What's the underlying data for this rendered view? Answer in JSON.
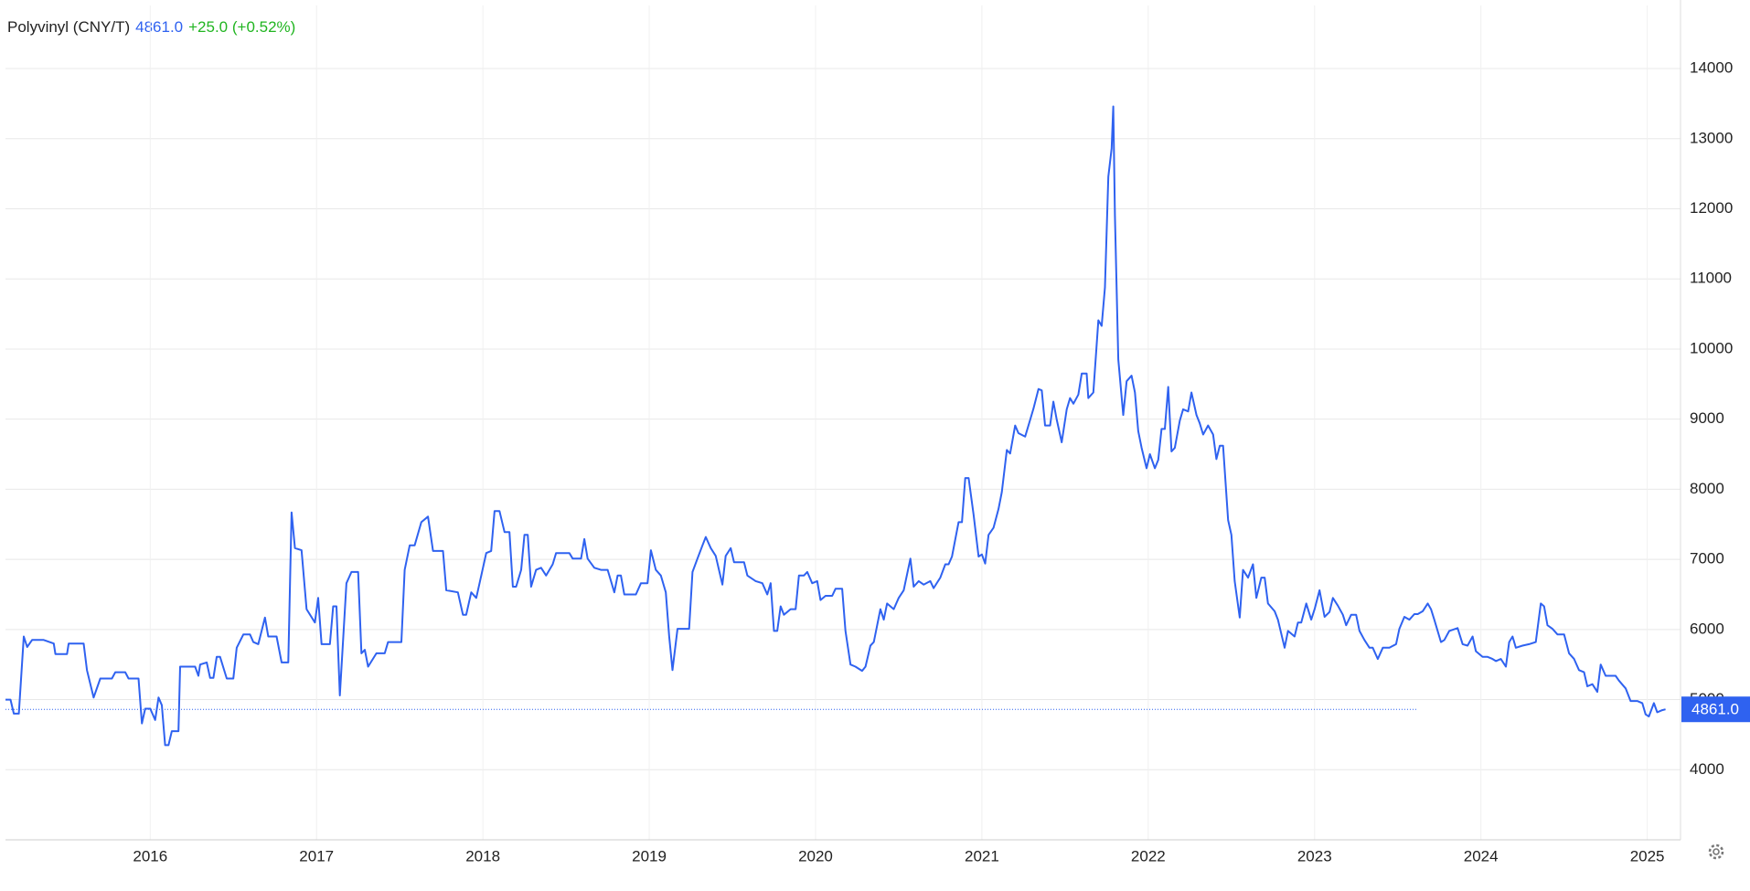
{
  "chart_data": {
    "type": "line",
    "title": "Polyvinyl (CNY/T)",
    "change": "+25.0 (+0.52%)",
    "current": {
      "value": 4861,
      "label": "4861.0"
    },
    "color": "#2f62f0",
    "change_color": "#21b521",
    "grid": true,
    "xlim": [
      2015.13,
      2025.2
    ],
    "xticks": [
      2016,
      2017,
      2018,
      2019,
      2020,
      2021,
      2022,
      2023,
      2024,
      2025
    ],
    "ylim": [
      3000,
      14900
    ],
    "yticks": [
      4000,
      5000,
      6000,
      7000,
      8000,
      9000,
      10000,
      11000,
      12000,
      13000,
      14000
    ],
    "x": [
      2015.13,
      2015.16,
      2015.18,
      2015.21,
      2015.24,
      2015.26,
      2015.29,
      2015.36,
      2015.42,
      2015.43,
      2015.5,
      2015.51,
      2015.6,
      2015.62,
      2015.66,
      2015.7,
      2015.77,
      2015.79,
      2015.85,
      2015.87,
      2015.93,
      2015.95,
      2015.97,
      2016.0,
      2016.03,
      2016.05,
      2016.07,
      2016.09,
      2016.11,
      2016.13,
      2016.17,
      2016.18,
      2016.27,
      2016.29,
      2016.3,
      2016.34,
      2016.36,
      2016.38,
      2016.4,
      2016.42,
      2016.46,
      2016.5,
      2016.52,
      2016.56,
      2016.6,
      2016.62,
      2016.65,
      2016.69,
      2016.71,
      2016.76,
      2016.79,
      2016.83,
      2016.85,
      2016.87,
      2016.91,
      2016.94,
      2016.99,
      2017.01,
      2017.03,
      2017.08,
      2017.1,
      2017.12,
      2017.14,
      2017.18,
      2017.21,
      2017.25,
      2017.27,
      2017.29,
      2017.31,
      2017.36,
      2017.41,
      2017.43,
      2017.51,
      2017.53,
      2017.56,
      2017.59,
      2017.63,
      2017.67,
      2017.7,
      2017.76,
      2017.78,
      2017.85,
      2017.88,
      2017.9,
      2017.93,
      2017.96,
      2017.98,
      2018.02,
      2018.05,
      2018.07,
      2018.1,
      2018.13,
      2018.16,
      2018.18,
      2018.2,
      2018.23,
      2018.25,
      2018.27,
      2018.29,
      2018.32,
      2018.35,
      2018.38,
      2018.42,
      2018.44,
      2018.52,
      2018.54,
      2018.59,
      2018.61,
      2018.63,
      2018.67,
      2018.71,
      2018.75,
      2018.79,
      2018.81,
      2018.83,
      2018.85,
      2018.92,
      2018.95,
      2018.99,
      2019.01,
      2019.04,
      2019.07,
      2019.1,
      2019.12,
      2019.14,
      2019.17,
      2019.24,
      2019.26,
      2019.29,
      2019.32,
      2019.34,
      2019.37,
      2019.4,
      2019.44,
      2019.46,
      2019.49,
      2019.51,
      2019.57,
      2019.59,
      2019.64,
      2019.68,
      2019.71,
      2019.73,
      2019.75,
      2019.77,
      2019.79,
      2019.81,
      2019.85,
      2019.88,
      2019.9,
      2019.93,
      2019.95,
      2019.98,
      2020.01,
      2020.03,
      2020.06,
      2020.1,
      2020.12,
      2020.16,
      2020.18,
      2020.21,
      2020.24,
      2020.28,
      2020.3,
      2020.33,
      2020.35,
      2020.39,
      2020.41,
      2020.43,
      2020.47,
      2020.5,
      2020.53,
      2020.57,
      2020.59,
      2020.62,
      2020.65,
      2020.69,
      2020.71,
      2020.75,
      2020.78,
      2020.8,
      2020.82,
      2020.86,
      2020.88,
      2020.9,
      2020.92,
      2020.95,
      2020.98,
      2021.0,
      2021.02,
      2021.04,
      2021.07,
      2021.1,
      2021.12,
      2021.15,
      2021.17,
      2021.2,
      2021.22,
      2021.26,
      2021.29,
      2021.31,
      2021.34,
      2021.36,
      2021.38,
      2021.41,
      2021.43,
      2021.45,
      2021.48,
      2021.51,
      2021.53,
      2021.55,
      2021.58,
      2021.6,
      2021.63,
      2021.64,
      2021.67,
      2021.7,
      2021.72,
      2021.74,
      2021.76,
      2021.78,
      2021.79,
      2021.8,
      2021.82,
      2021.85,
      2021.87,
      2021.9,
      2021.92,
      2021.94,
      2021.96,
      2021.99,
      2022.01,
      2022.04,
      2022.06,
      2022.08,
      2022.1,
      2022.12,
      2022.14,
      2022.16,
      2022.19,
      2022.21,
      2022.24,
      2022.26,
      2022.29,
      2022.31,
      2022.33,
      2022.36,
      2022.39,
      2022.41,
      2022.43,
      2022.45,
      2022.48,
      2022.5,
      2022.52,
      2022.55,
      2022.57,
      2022.6,
      2022.63,
      2022.65,
      2022.68,
      2022.7,
      2022.72,
      2022.76,
      2022.78,
      2022.82,
      2022.84,
      2022.88,
      2022.9,
      2022.92,
      2022.95,
      2022.98,
      2023.0,
      2023.03,
      2023.06,
      2023.09,
      2023.11,
      2023.14,
      2023.17,
      2023.19,
      2023.22,
      2023.25,
      2023.27,
      2023.3,
      2023.33,
      2023.35,
      2023.38,
      2023.41,
      2023.45,
      2023.49,
      2023.51,
      2023.54,
      2023.57,
      2023.6,
      2023.62,
      2023.65,
      2023.68,
      2023.7,
      2023.72,
      2023.76,
      2023.78,
      2023.81,
      2023.86,
      2023.89,
      2023.92,
      2023.95,
      2023.97,
      2024.01,
      2024.04,
      2024.07,
      2024.09,
      2024.12,
      2024.15,
      2024.17,
      2024.19,
      2024.21,
      2024.25,
      2024.29,
      2024.33,
      2024.36,
      2024.38,
      2024.4,
      2024.43,
      2024.46,
      2024.5,
      2024.53,
      2024.56,
      2024.59,
      2024.62,
      2024.64,
      2024.67,
      2024.7,
      2024.72,
      2024.75,
      2024.78,
      2024.81,
      2024.83,
      2024.87,
      2024.9,
      2024.94,
      2024.97,
      2024.99,
      2025.01,
      2025.04,
      2025.06,
      2025.09,
      2025.11
    ],
    "values": [
      5000,
      5000,
      4800,
      4800,
      5900,
      5750,
      5850,
      5850,
      5800,
      5650,
      5650,
      5800,
      5800,
      5420,
      5030,
      5300,
      5300,
      5390,
      5390,
      5300,
      5300,
      4660,
      4870,
      4870,
      4710,
      5030,
      4920,
      4350,
      4350,
      4550,
      4550,
      5470,
      5470,
      5340,
      5500,
      5530,
      5310,
      5310,
      5610,
      5610,
      5300,
      5300,
      5740,
      5930,
      5930,
      5820,
      5790,
      6170,
      5900,
      5900,
      5530,
      5530,
      7670,
      7160,
      7130,
      6290,
      6100,
      6450,
      5790,
      5790,
      6330,
      6330,
      5060,
      6660,
      6820,
      6820,
      5660,
      5710,
      5470,
      5660,
      5660,
      5820,
      5820,
      6850,
      7200,
      7200,
      7530,
      7610,
      7120,
      7120,
      6560,
      6530,
      6210,
      6210,
      6530,
      6450,
      6660,
      7090,
      7120,
      7690,
      7690,
      7390,
      7390,
      6610,
      6610,
      6850,
      7350,
      7350,
      6610,
      6850,
      6880,
      6770,
      6930,
      7090,
      7090,
      7010,
      7010,
      7290,
      7010,
      6880,
      6850,
      6850,
      6530,
      6770,
      6770,
      6500,
      6500,
      6660,
      6660,
      7130,
      6850,
      6770,
      6530,
      5900,
      5420,
      6010,
      6010,
      6820,
      7010,
      7200,
      7320,
      7160,
      7050,
      6640,
      7050,
      7160,
      6960,
      6960,
      6770,
      6690,
      6660,
      6500,
      6660,
      5980,
      5980,
      6330,
      6210,
      6290,
      6290,
      6770,
      6770,
      6820,
      6660,
      6690,
      6420,
      6480,
      6480,
      6580,
      6580,
      5980,
      5500,
      5470,
      5410,
      5470,
      5770,
      5820,
      6290,
      6140,
      6370,
      6290,
      6450,
      6560,
      7010,
      6610,
      6690,
      6640,
      6690,
      6590,
      6740,
      6930,
      6930,
      7040,
      7530,
      7530,
      8160,
      8160,
      7640,
      7040,
      7070,
      6940,
      7350,
      7450,
      7720,
      7960,
      8560,
      8510,
      8910,
      8800,
      8750,
      8990,
      9150,
      9430,
      9410,
      8910,
      8910,
      9250,
      8990,
      8670,
      9140,
      9300,
      9220,
      9350,
      9650,
      9650,
      9300,
      9380,
      10410,
      10330,
      10880,
      12460,
      12860,
      13460,
      11910,
      9850,
      9060,
      9540,
      9620,
      9380,
      8830,
      8590,
      8300,
      8500,
      8300,
      8420,
      8860,
      8860,
      9460,
      8540,
      8590,
      8980,
      9140,
      9110,
      9380,
      9060,
      8940,
      8780,
      8910,
      8780,
      8430,
      8620,
      8620,
      7560,
      7350,
      6690,
      6170,
      6850,
      6740,
      6930,
      6450,
      6740,
      6740,
      6370,
      6260,
      6140,
      5740,
      5980,
      5900,
      6100,
      6100,
      6370,
      6140,
      6290,
      6560,
      6180,
      6250,
      6450,
      6340,
      6210,
      6060,
      6210,
      6210,
      5980,
      5850,
      5740,
      5740,
      5580,
      5740,
      5740,
      5790,
      6010,
      6180,
      6140,
      6220,
      6220,
      6260,
      6370,
      6290,
      6140,
      5820,
      5850,
      5980,
      6020,
      5790,
      5770,
      5900,
      5690,
      5610,
      5610,
      5580,
      5550,
      5580,
      5470,
      5820,
      5900,
      5740,
      5770,
      5790,
      5820,
      6370,
      6330,
      6060,
      6010,
      5930,
      5930,
      5660,
      5580,
      5420,
      5390,
      5190,
      5220,
      5110,
      5500,
      5340,
      5340,
      5340,
      5270,
      5160,
      4980,
      4980,
      4950,
      4790,
      4760,
      4950,
      4820,
      4850,
      4861
    ]
  }
}
